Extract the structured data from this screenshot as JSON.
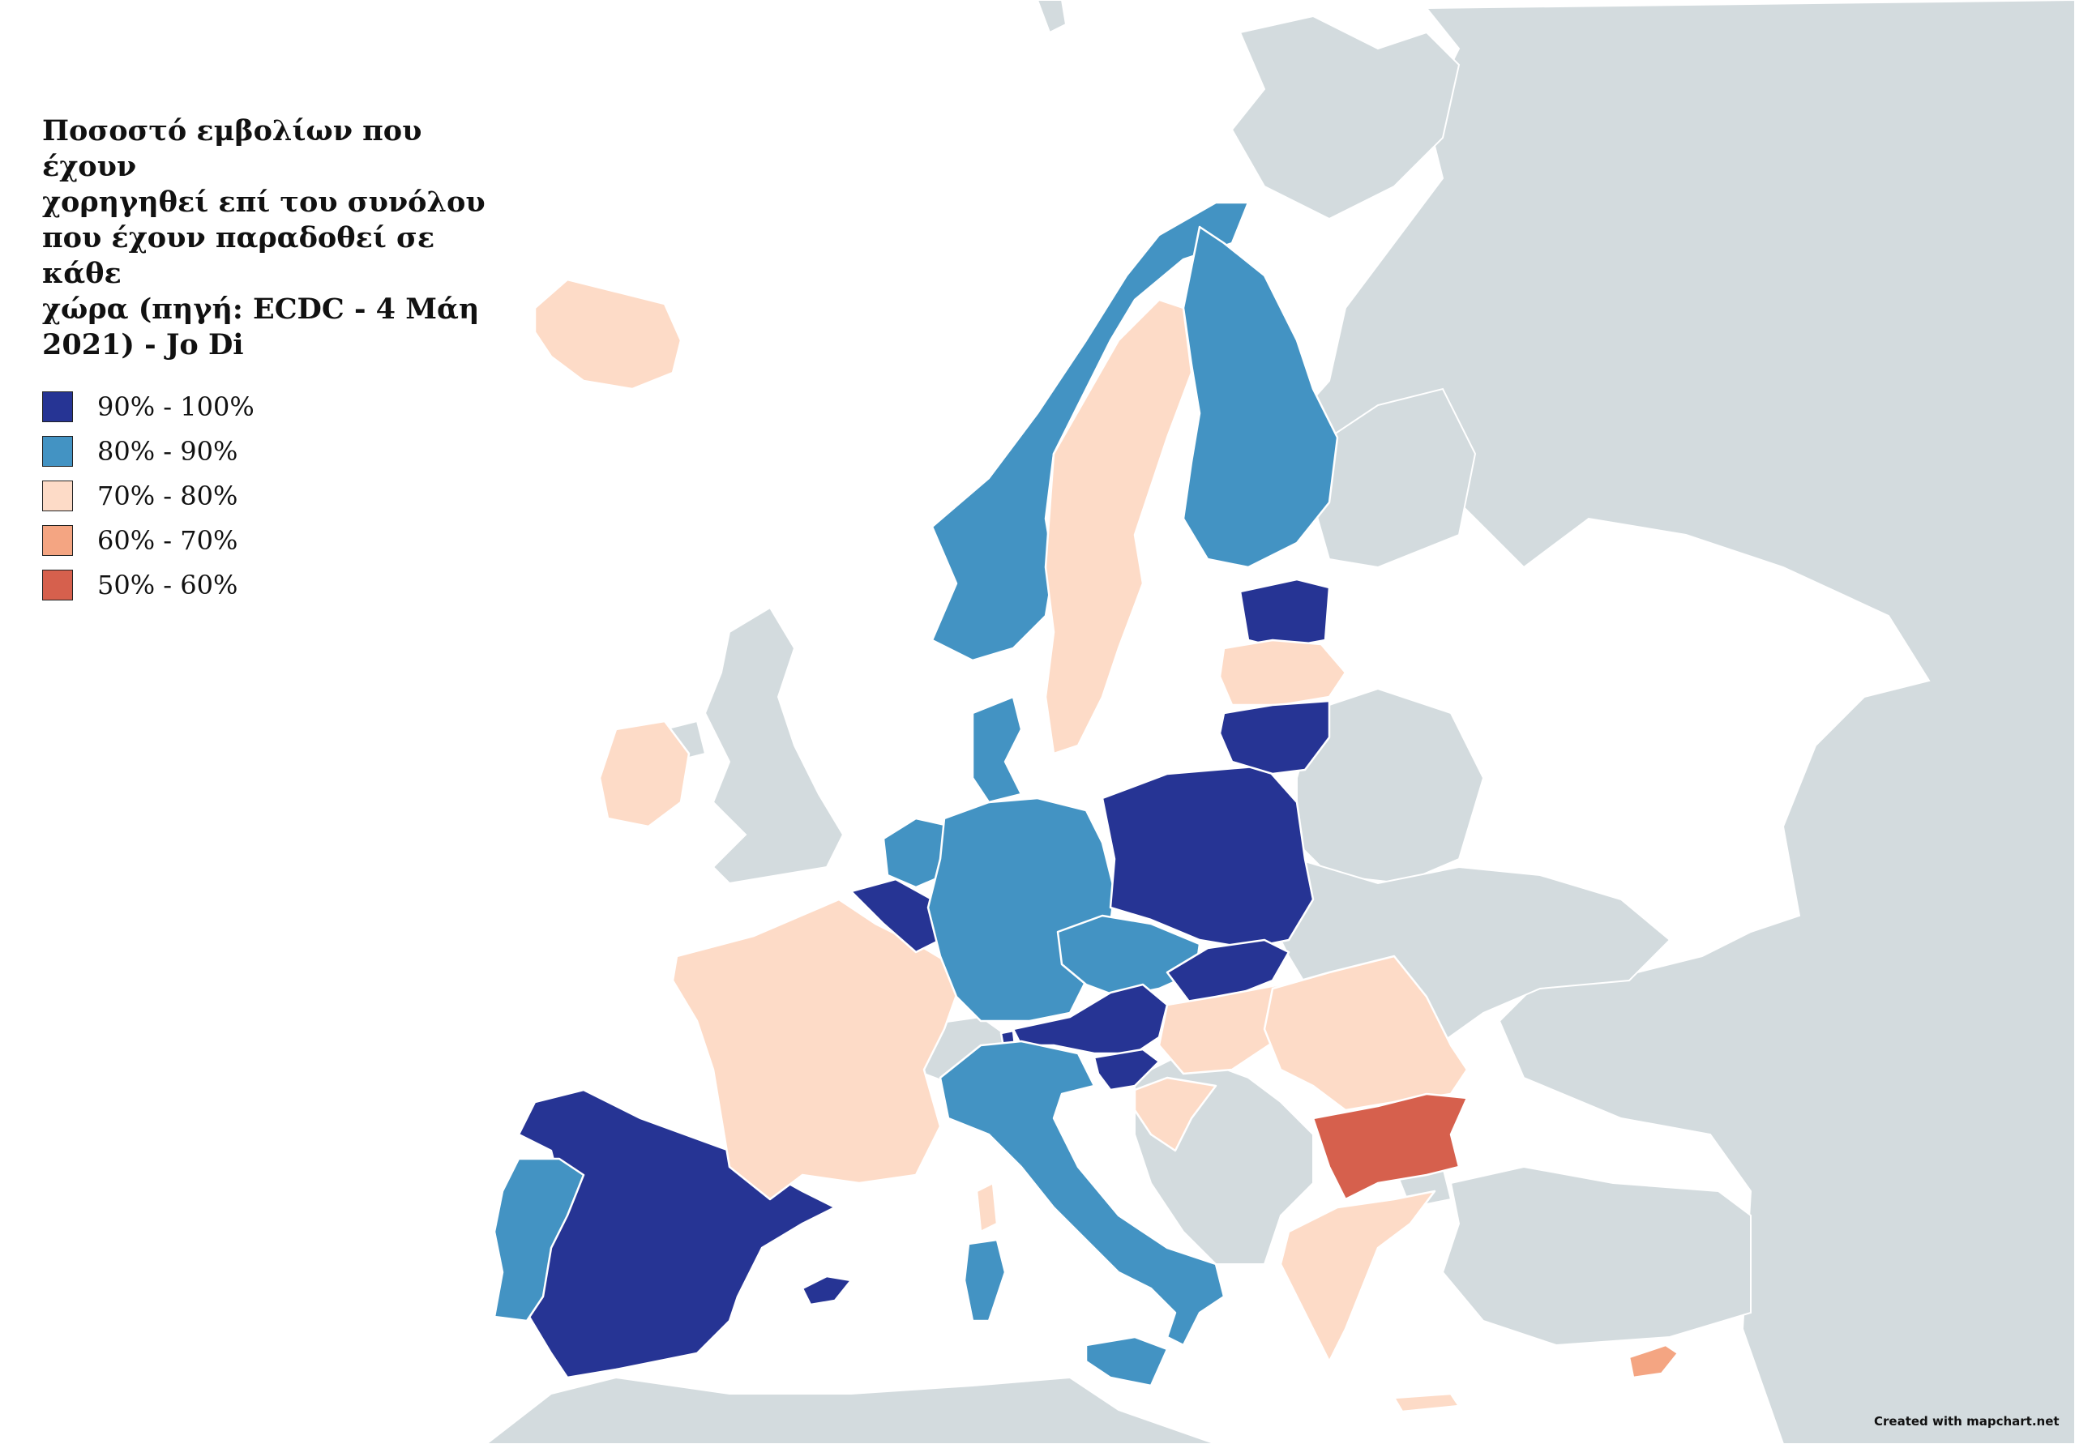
{
  "title": "Ποσοστό εμβολίων που έχουν\nχορηγηθεί επί του συνόλου\nπου έχουν παραδοθεί σε κάθε\nχώρα (πηγή: ECDC - 4 Μάη\n2021) - Jo Di",
  "legend": [
    {
      "label": "90% - 100%",
      "color": "#263494"
    },
    {
      "label": "80% - 90%",
      "color": "#4393c3"
    },
    {
      "label": "70% - 80%",
      "color": "#fddbc7"
    },
    {
      "label": "60% - 70%",
      "color": "#f4a582"
    },
    {
      "label": "50% - 60%",
      "color": "#d6604d"
    }
  ],
  "no_data_color": "#d3dbde",
  "sea_color": "#ffffff",
  "credit": "Created with mapchart.net",
  "countries": [
    {
      "name": "Spain",
      "class": "90% - 100%"
    },
    {
      "name": "Belgium",
      "class": "90% - 100%"
    },
    {
      "name": "Poland",
      "class": "90% - 100%"
    },
    {
      "name": "Austria",
      "class": "90% - 100%"
    },
    {
      "name": "Slovakia",
      "class": "90% - 100%"
    },
    {
      "name": "Slovenia",
      "class": "90% - 100%"
    },
    {
      "name": "Lithuania",
      "class": "90% - 100%"
    },
    {
      "name": "Estonia",
      "class": "90% - 100%"
    },
    {
      "name": "Liechtenstein",
      "class": "90% - 100%"
    },
    {
      "name": "Portugal",
      "class": "80% - 90%"
    },
    {
      "name": "Italy",
      "class": "80% - 90%"
    },
    {
      "name": "Germany",
      "class": "80% - 90%"
    },
    {
      "name": "Netherlands",
      "class": "80% - 90%"
    },
    {
      "name": "Denmark",
      "class": "80% - 90%"
    },
    {
      "name": "Norway",
      "class": "80% - 90%"
    },
    {
      "name": "Finland",
      "class": "80% - 90%"
    },
    {
      "name": "Czechia",
      "class": "80% - 90%"
    },
    {
      "name": "France",
      "class": "70% - 80%"
    },
    {
      "name": "Sweden",
      "class": "70% - 80%"
    },
    {
      "name": "Ireland",
      "class": "70% - 80%"
    },
    {
      "name": "Iceland",
      "class": "70% - 80%"
    },
    {
      "name": "Latvia",
      "class": "70% - 80%"
    },
    {
      "name": "Hungary",
      "class": "70% - 80%"
    },
    {
      "name": "Romania",
      "class": "70% - 80%"
    },
    {
      "name": "Croatia",
      "class": "70% - 80%"
    },
    {
      "name": "Greece",
      "class": "70% - 80%"
    },
    {
      "name": "Cyprus",
      "class": "60% - 70%"
    },
    {
      "name": "Bulgaria",
      "class": "50% - 60%"
    }
  ]
}
